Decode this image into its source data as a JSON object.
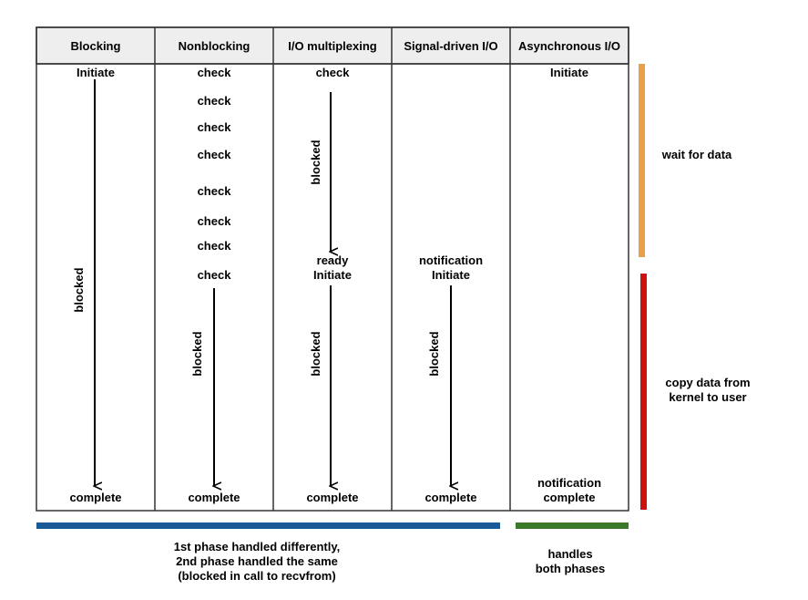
{
  "columns": [
    {
      "header": "Blocking"
    },
    {
      "header": "Nonblocking"
    },
    {
      "header": "I/O multiplexing"
    },
    {
      "header": "Signal-driven I/O"
    },
    {
      "header": "Asynchronous I/O"
    }
  ],
  "blocking": {
    "initiate": "Initiate",
    "blocked": "blocked",
    "complete": "complete"
  },
  "nonblocking": {
    "checks": [
      "check",
      "check",
      "check",
      "check",
      "check",
      "check",
      "check",
      "check"
    ],
    "blocked": "blocked",
    "complete": "complete"
  },
  "multiplexing": {
    "check": "check",
    "blocked1": "blocked",
    "ready": "ready",
    "initiate": "Initiate",
    "blocked2": "blocked",
    "complete": "complete"
  },
  "signal": {
    "notification": "notification",
    "initiate": "Initiate",
    "blocked": "blocked",
    "complete": "complete"
  },
  "async": {
    "initiate": "Initiate",
    "notification": "notification",
    "complete": "complete"
  },
  "phases": {
    "wait_label": "wait for data",
    "copy_label_line1": "copy data from",
    "copy_label_line2": "kernel to user",
    "wait_color": "#e8a04a",
    "copy_color": "#cc1111"
  },
  "footer": {
    "left_line1": "1st phase handled differently,",
    "left_line2": "2nd phase handled the same",
    "left_line3": "(blocked in call to recvfrom)",
    "right_line1": "handles",
    "right_line2": "both phases",
    "left_color": "#1a5a96",
    "right_color": "#3a7a2a"
  }
}
